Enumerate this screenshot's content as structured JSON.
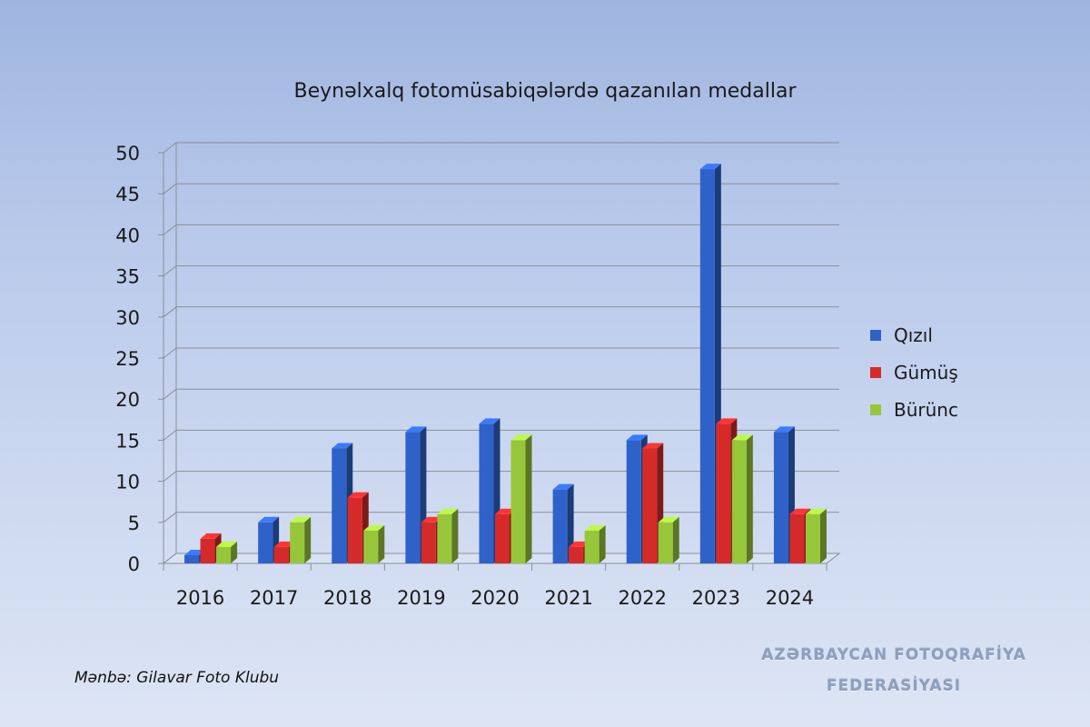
{
  "chart_data": {
    "type": "bar",
    "title": "Beynəlxalq fotomüsabiqələrdə qazanılan medallar",
    "categories": [
      "2016",
      "2017",
      "2018",
      "2019",
      "2020",
      "2021",
      "2022",
      "2023",
      "2024"
    ],
    "series": [
      {
        "name": "Qızıl",
        "values": [
          1,
          5,
          14,
          16,
          17,
          9,
          15,
          48,
          16
        ],
        "color": "#2f62c9"
      },
      {
        "name": "Gümüş",
        "values": [
          3,
          2,
          8,
          5,
          6,
          2,
          14,
          17,
          6
        ],
        "color": "#d52a2a"
      },
      {
        "name": "Bürünc",
        "values": [
          2,
          5,
          4,
          6,
          15,
          4,
          5,
          15,
          6
        ],
        "color": "#98c63a"
      }
    ],
    "ylim": [
      0,
      50
    ],
    "yticks": [
      0,
      5,
      10,
      15,
      20,
      25,
      30,
      35,
      40,
      45,
      50
    ],
    "grid": true,
    "legend": "right",
    "style": "3d-clustered-column"
  },
  "source_note": "Mənbə: Gilavar Foto Klubu",
  "watermark": {
    "line1": "AZƏRBAYCAN FOTOQRAFİYA",
    "line2": "FEDERASİYASI"
  }
}
